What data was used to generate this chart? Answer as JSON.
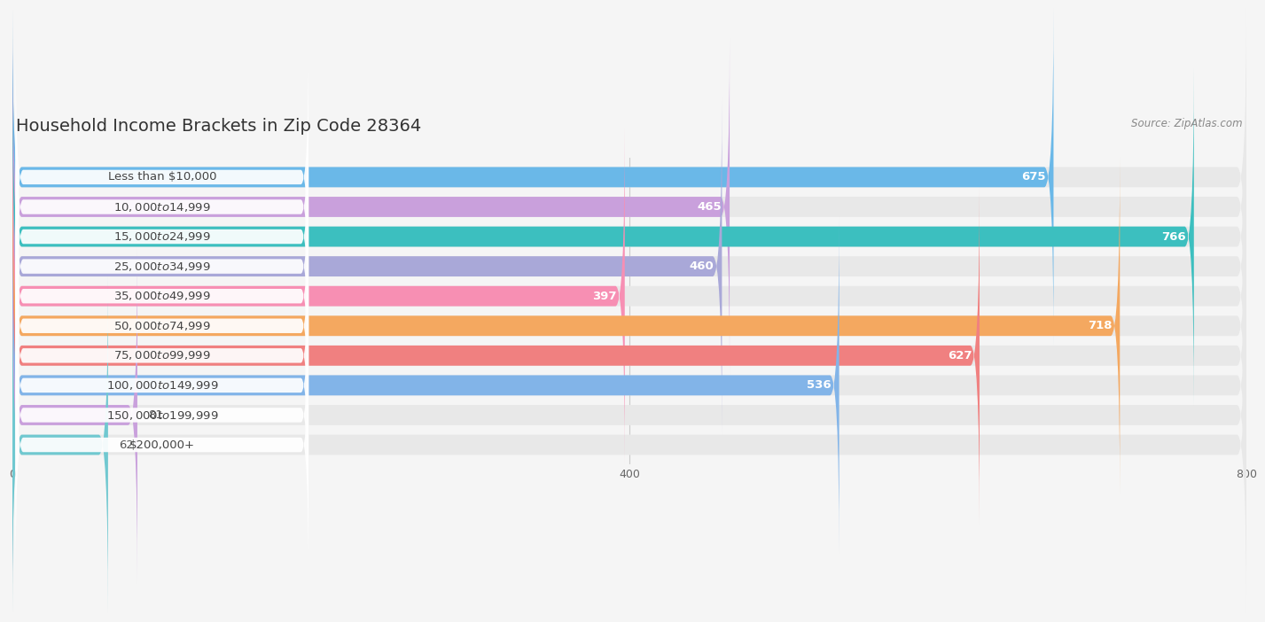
{
  "title": "Household Income Brackets in Zip Code 28364",
  "source": "Source: ZipAtlas.com",
  "categories": [
    "Less than $10,000",
    "$10,000 to $14,999",
    "$15,000 to $24,999",
    "$25,000 to $34,999",
    "$35,000 to $49,999",
    "$50,000 to $74,999",
    "$75,000 to $99,999",
    "$100,000 to $149,999",
    "$150,000 to $199,999",
    "$200,000+"
  ],
  "values": [
    675,
    465,
    766,
    460,
    397,
    718,
    627,
    536,
    81,
    62
  ],
  "bar_colors": [
    "#6ab8e8",
    "#c9a0dc",
    "#3cbfbf",
    "#a9a8d8",
    "#f78fb3",
    "#f4a860",
    "#f08080",
    "#82b4e8",
    "#c9a0dc",
    "#70c8d0"
  ],
  "background_color": "#f5f5f5",
  "row_bg_color": "#e8e8e8",
  "xlim": [
    0,
    800
  ],
  "xticks": [
    0,
    400,
    800
  ],
  "bar_height": 0.68,
  "title_fontsize": 14,
  "label_fontsize": 9.5,
  "value_fontsize": 9.5,
  "value_threshold": 200
}
